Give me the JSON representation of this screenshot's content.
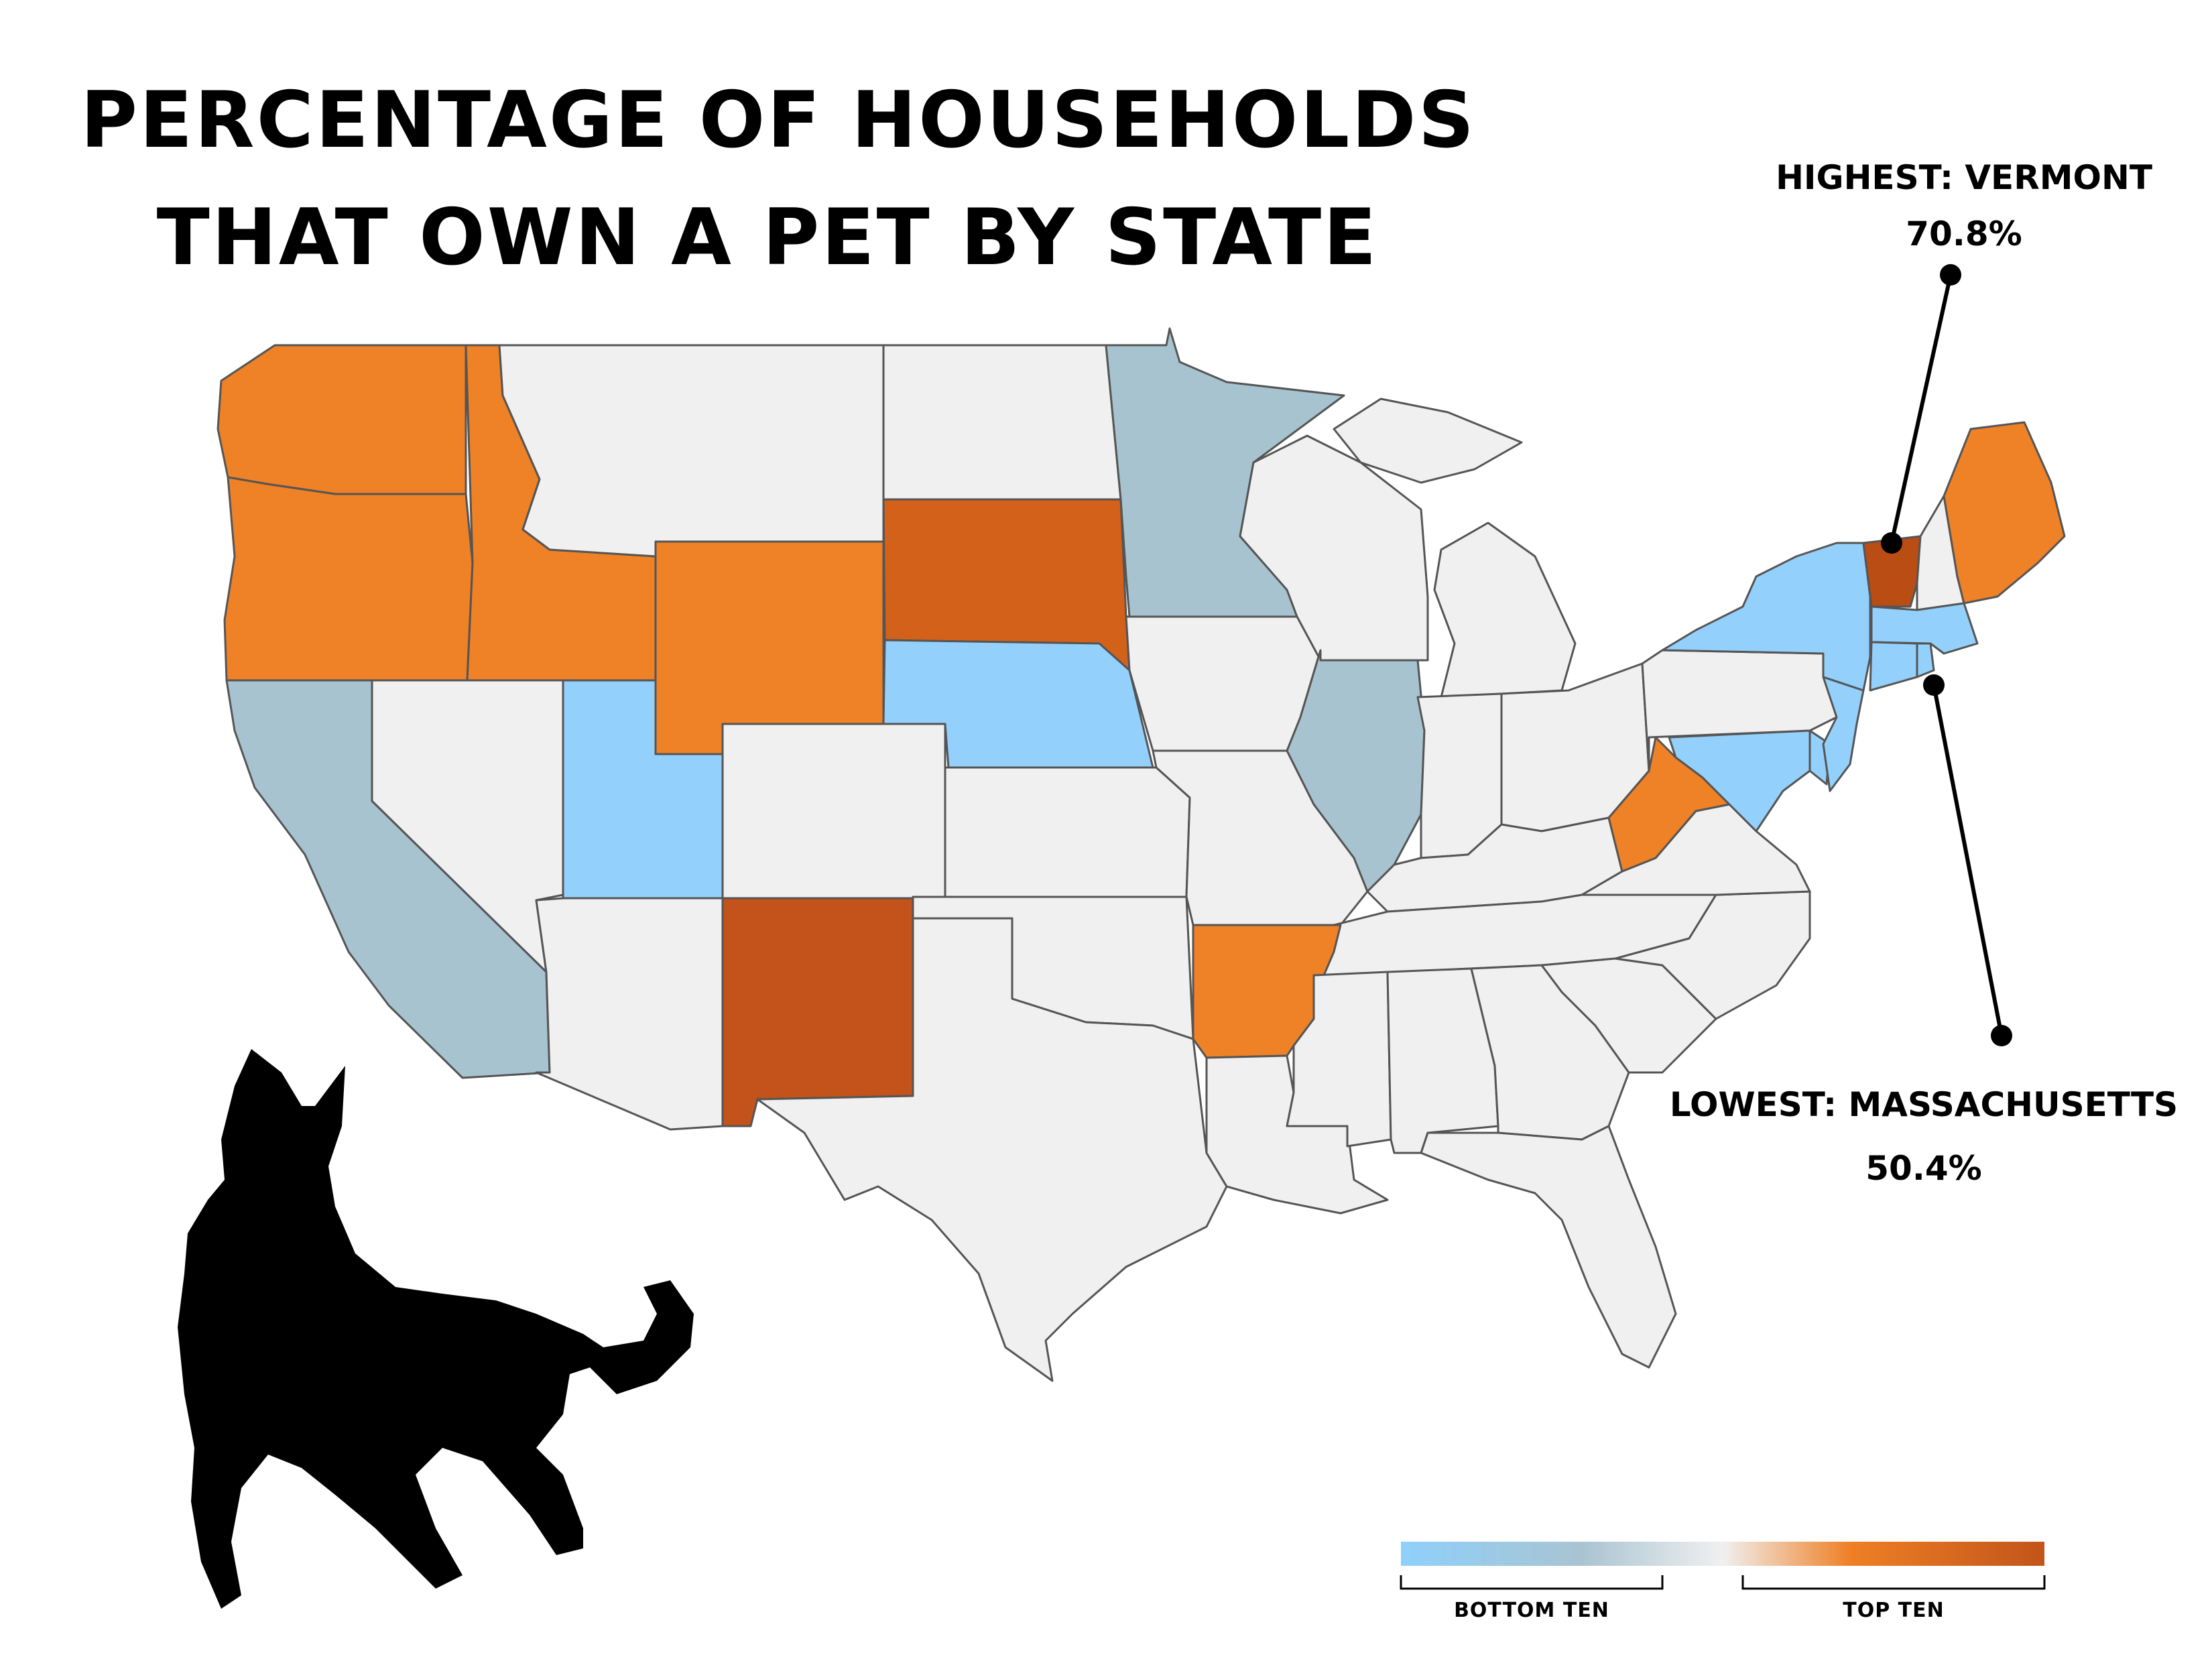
{
  "title": {
    "line1": "PERCENTAGE OF HOUSEHOLDS",
    "line2": "THAT OWN A PET BY STATE"
  },
  "highest": {
    "label": "HIGHEST: VERMONT",
    "value": "70.8%"
  },
  "lowest": {
    "label": "LOWEST: MASSACHUSETTS",
    "value": "50.4%"
  },
  "legend": {
    "bottom_label": "BOTTOM TEN",
    "top_label": "TOP TEN",
    "colors": [
      "#8fd0fb",
      "#a9c4d1",
      "#f0f0f0",
      "#ef7f24",
      "#c2541a"
    ]
  },
  "colors": {
    "default": "#f0f0f0",
    "bottom_ten_light": "#93d0fb",
    "bottom_ten_gray": "#a7c3d0",
    "top_ten": "#ef8126",
    "top_ten_dark": "#d4611a",
    "top_ten_darkest": "#c3531a",
    "highest": "#b94d14"
  },
  "categories": {
    "highest": [
      "Vermont"
    ],
    "top_ten_darkest": [
      "New Mexico"
    ],
    "top_ten_dark": [
      "South Dakota"
    ],
    "top_ten": [
      "Washington",
      "Oregon",
      "Idaho",
      "Wyoming",
      "Arkansas",
      "West Virginia",
      "Maine"
    ],
    "bottom_ten_gray": [
      "California",
      "Minnesota",
      "Illinois"
    ],
    "bottom_ten_light": [
      "Utah",
      "Nebraska",
      "New York",
      "New Jersey",
      "Maryland",
      "Delaware",
      "Connecticut",
      "Rhode Island",
      "Massachusetts"
    ]
  }
}
